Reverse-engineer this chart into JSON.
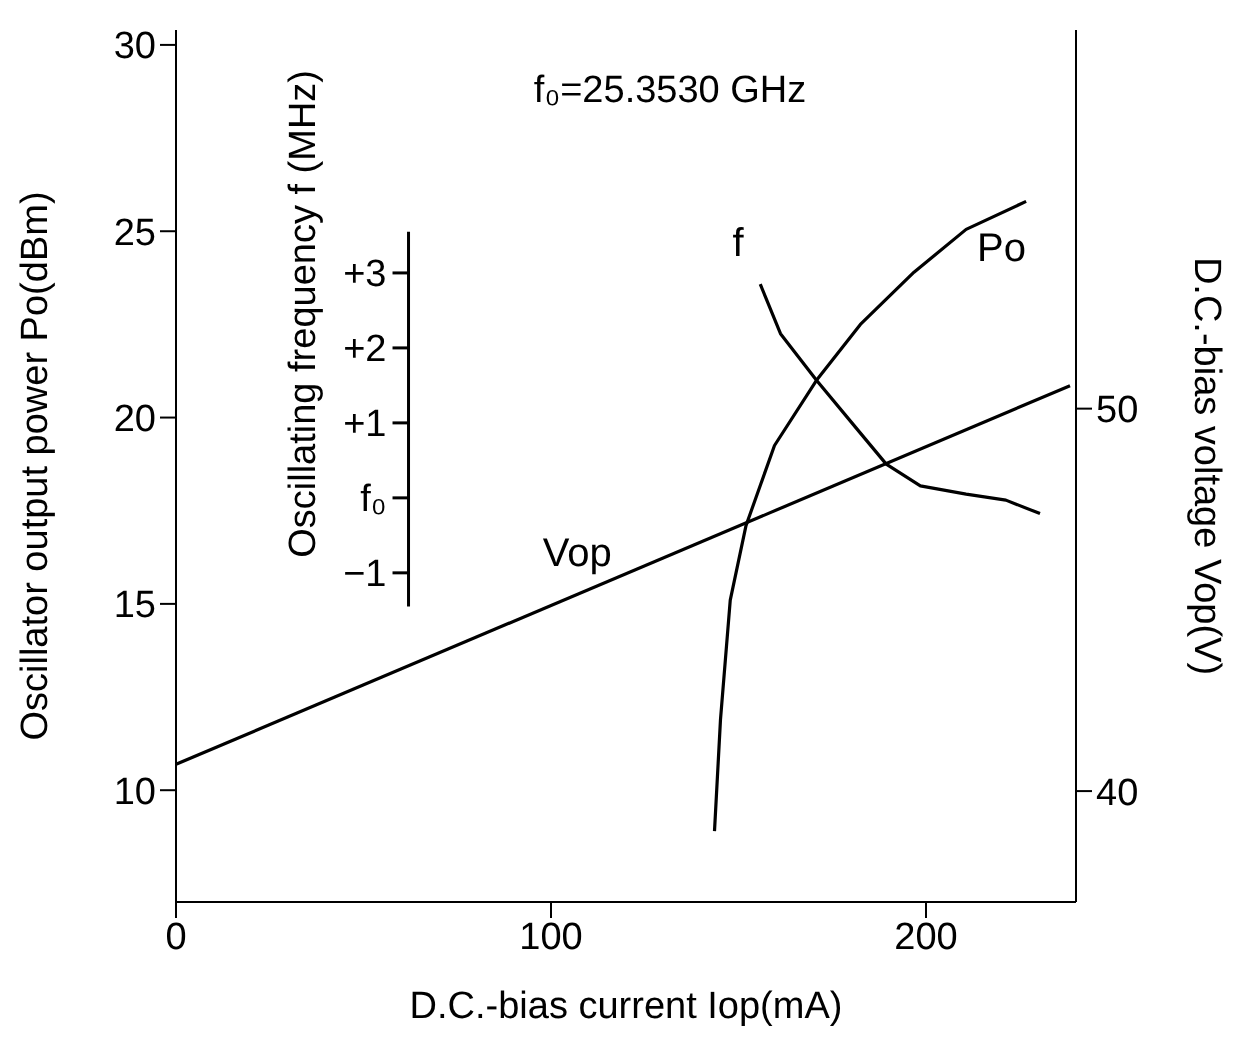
{
  "chart_data": {
    "type": "line",
    "xlabel": "D.C.-bias current Iop(mA)",
    "ylabel": "Oscillator output power Po(dBm)",
    "y2label": "D.C.-bias voltage Vop(V)",
    "y3label": "Oscillating frequency f (MHz)",
    "annotations": [
      "f₀=25.3530 GHz"
    ],
    "xlim": [
      0,
      240
    ],
    "xticks": [
      0,
      100,
      200
    ],
    "ylim": [
      7,
      30.4
    ],
    "yticks": [
      10,
      15,
      20,
      25,
      30
    ],
    "y2lim": [
      37.1,
      59.9
    ],
    "y2ticks": [
      40,
      50
    ],
    "y3lim": [
      -5.39,
      6.24
    ],
    "y3ticks": [
      {
        "value": 3,
        "label": "+3"
      },
      {
        "value": 2,
        "label": "+2"
      },
      {
        "value": 1,
        "label": "+1"
      },
      {
        "value": 0,
        "label": "f₀"
      },
      {
        "value": -1,
        "label": "−1"
      }
    ],
    "grid": false,
    "legend": false,
    "marker": "none",
    "line_style": "solid",
    "series": [
      {
        "name": "Po",
        "color": "#000000",
        "x": [
          143.6,
          145.2,
          147.8,
          152,
          159.6,
          170.8,
          182.5,
          196.8,
          210.7,
          226.7
        ],
        "values": [
          8.9,
          11.9,
          15.1,
          17.1,
          19.25,
          21.0,
          22.5,
          23.9,
          25.05,
          25.8
        ]
      },
      {
        "name": "f",
        "color": "#000000",
        "axis": "y3",
        "x": [
          155.8,
          161.2,
          170.8,
          180.9,
          189.4,
          198.5,
          210.7,
          221.3,
          230.4
        ],
        "values": [
          2.85,
          2.19,
          1.57,
          0.96,
          0.45,
          0.16,
          0.05,
          -0.03,
          -0.21
        ]
      },
      {
        "name": "Vop",
        "color": "#000000",
        "axis": "y2",
        "x": [
          0,
          238.4
        ],
        "values": [
          40.7,
          50.6
        ]
      }
    ]
  }
}
